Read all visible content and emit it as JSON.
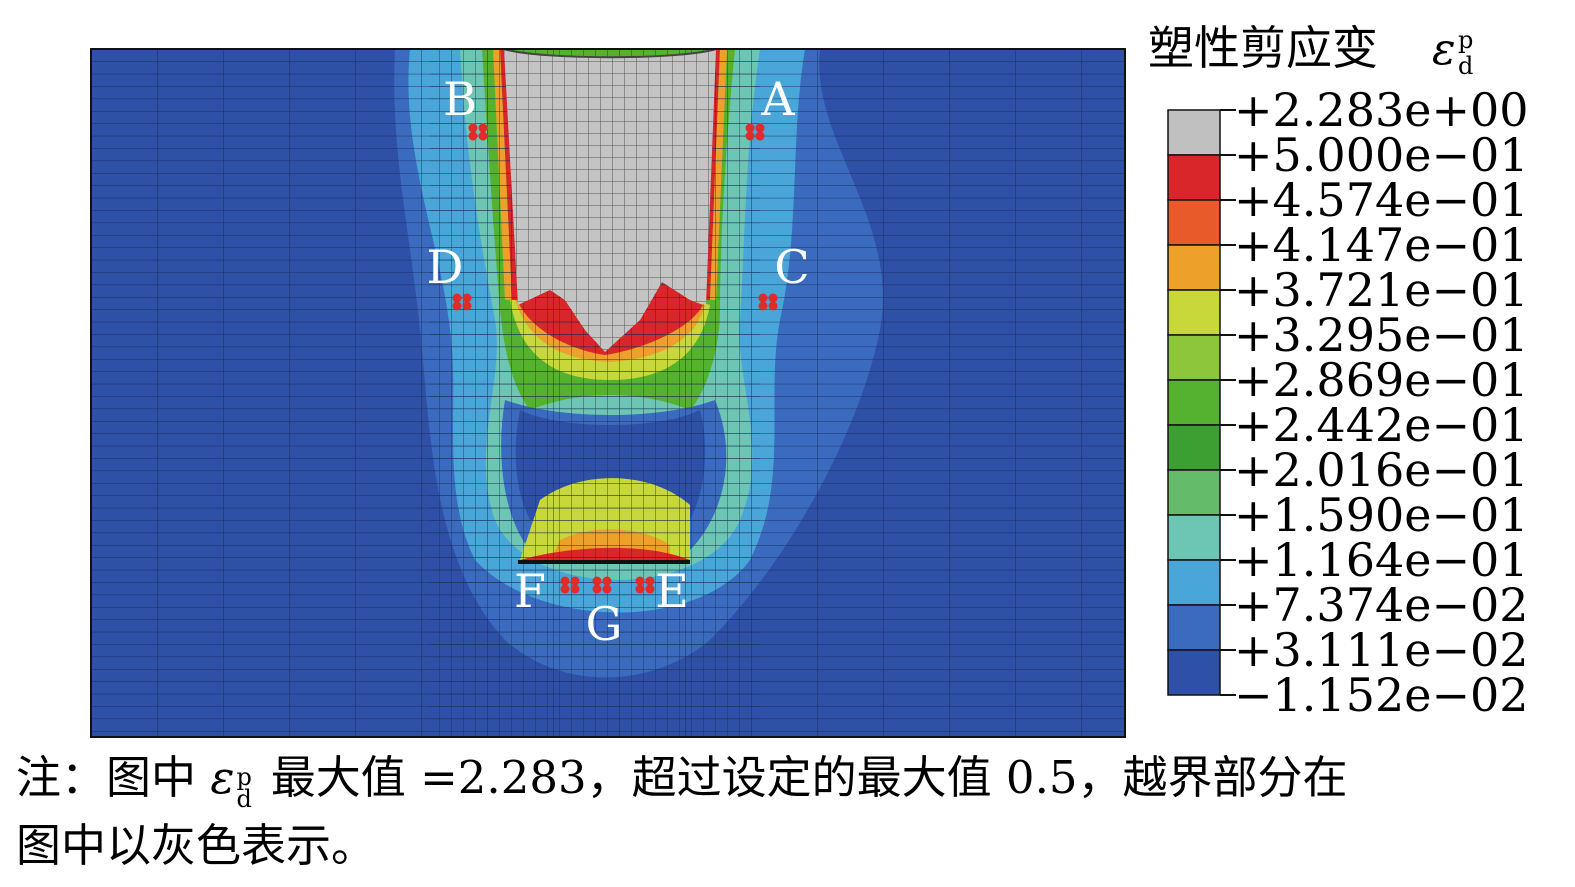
{
  "legend": {
    "title": "塑性剪应变",
    "symbol": "ε",
    "sup": "p",
    "sub": "d",
    "labels": [
      "+2.283e+00",
      "+5.000e−01",
      "+4.574e−01",
      "+4.147e−01",
      "+3.721e−01",
      "+3.295e−01",
      "+2.869e−01",
      "+2.442e−01",
      "+2.016e−01",
      "+1.590e−01",
      "+1.164e−01",
      "+7.374e−02",
      "+3.111e−02",
      "−1.152e−02"
    ],
    "colors": [
      "#c0c0c0",
      "#d8262a",
      "#e95a2a",
      "#eda12a",
      "#c8d83a",
      "#8dc63a",
      "#55b22f",
      "#3c9f32",
      "#64bc6a",
      "#6cc6b3",
      "#4aa6d8",
      "#3a6bbf",
      "#2e50a6"
    ]
  },
  "points": [
    {
      "label": "A"
    },
    {
      "label": "B"
    },
    {
      "label": "C"
    },
    {
      "label": "D"
    },
    {
      "label": "E"
    },
    {
      "label": "F"
    },
    {
      "label": "G"
    }
  ],
  "note": {
    "line1_a": "注：图中",
    "symbol": "ε",
    "sup": "p",
    "sub": "d",
    "line1_b": "最大值 =2.283，超过设定的最大值 0.5，越界部分在",
    "line2": "图中以灰色表示。"
  }
}
